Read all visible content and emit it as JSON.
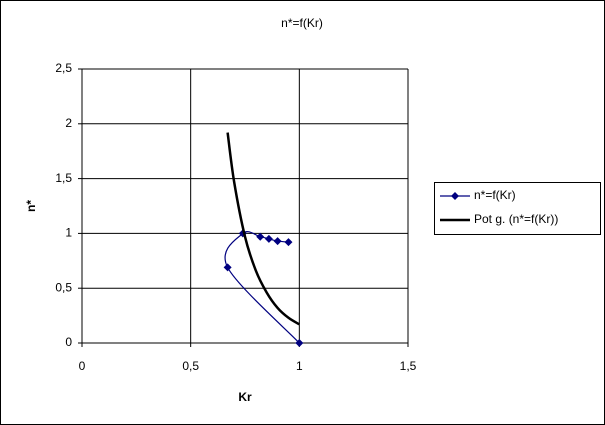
{
  "chart_data": {
    "type": "scatter",
    "title": "n*=f(Kr)",
    "x_label": "Kr",
    "y_label": "n*",
    "xlim": [
      0,
      1.5
    ],
    "ylim": [
      0,
      2.5
    ],
    "xticks": [
      0,
      {
        "value": 0.5,
        "label": "0,5"
      },
      1,
      {
        "value": 1.5,
        "label": "1,5"
      }
    ],
    "yticks": [
      0,
      {
        "value": 0.5,
        "label": "0,5"
      },
      1,
      {
        "value": 1.5,
        "label": "1,5"
      },
      2,
      {
        "value": 2.5,
        "label": "2,5"
      }
    ],
    "grid": true,
    "legend": "right",
    "series": [
      {
        "name": "n*=f(Kr)",
        "color": "#000080",
        "marker": "diamond",
        "smooth": true,
        "x": [
          1,
          0.67,
          0.74,
          0.82,
          0.86,
          0.9,
          0.95
        ],
        "values": [
          0,
          0.69,
          1.0,
          0.97,
          0.95,
          0.93,
          0.92
        ]
      },
      {
        "name": "Pot  g. (n*=f(Kr))",
        "color": "#000000",
        "marker": "none",
        "smooth": true,
        "x": [
          0.67,
          0.7,
          0.75,
          0.8,
          0.85,
          0.9,
          0.95,
          1.0
        ],
        "values": [
          1.92,
          1.47,
          0.97,
          0.66,
          0.46,
          0.32,
          0.23,
          0.17
        ]
      }
    ]
  }
}
